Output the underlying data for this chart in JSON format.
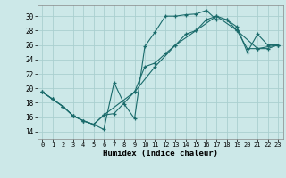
{
  "xlabel": "Humidex (Indice chaleur)",
  "bg_color": "#cce8e8",
  "grid_color": "#aacfcf",
  "line_color": "#1a6b6b",
  "xlim": [
    -0.5,
    23.5
  ],
  "ylim": [
    13.0,
    31.5
  ],
  "xticks": [
    0,
    1,
    2,
    3,
    4,
    5,
    6,
    7,
    8,
    9,
    10,
    11,
    12,
    13,
    14,
    15,
    16,
    17,
    18,
    19,
    20,
    21,
    22,
    23
  ],
  "yticks": [
    14,
    16,
    18,
    20,
    22,
    24,
    26,
    28,
    30
  ],
  "line1_x": [
    0,
    1,
    2,
    3,
    4,
    5,
    6,
    7,
    8,
    9,
    10,
    11,
    12,
    13,
    14,
    15,
    16,
    17,
    18,
    19,
    20,
    21,
    22,
    23
  ],
  "line1_y": [
    19.5,
    18.5,
    17.5,
    16.2,
    15.5,
    15.0,
    14.3,
    20.8,
    17.8,
    15.8,
    25.8,
    27.8,
    30.0,
    30.0,
    30.2,
    30.3,
    30.8,
    29.5,
    29.5,
    28.5,
    25.0,
    27.5,
    26.0,
    26.0
  ],
  "line2_x": [
    0,
    1,
    2,
    3,
    4,
    5,
    6,
    7,
    9,
    10,
    11,
    12,
    13,
    14,
    15,
    16,
    17,
    18,
    19,
    20,
    21,
    22,
    23
  ],
  "line2_y": [
    19.5,
    18.5,
    17.5,
    16.2,
    15.5,
    15.0,
    16.3,
    16.5,
    19.5,
    23.0,
    23.5,
    24.8,
    26.0,
    27.5,
    28.0,
    29.5,
    30.0,
    29.5,
    28.0,
    25.5,
    25.5,
    25.5,
    26.0
  ],
  "line3_x": [
    0,
    1,
    2,
    3,
    4,
    5,
    6,
    9,
    11,
    13,
    15,
    17,
    19,
    21,
    23
  ],
  "line3_y": [
    19.5,
    18.5,
    17.5,
    16.2,
    15.5,
    15.0,
    16.3,
    19.5,
    23.0,
    26.0,
    28.0,
    30.0,
    28.0,
    25.5,
    26.0
  ]
}
